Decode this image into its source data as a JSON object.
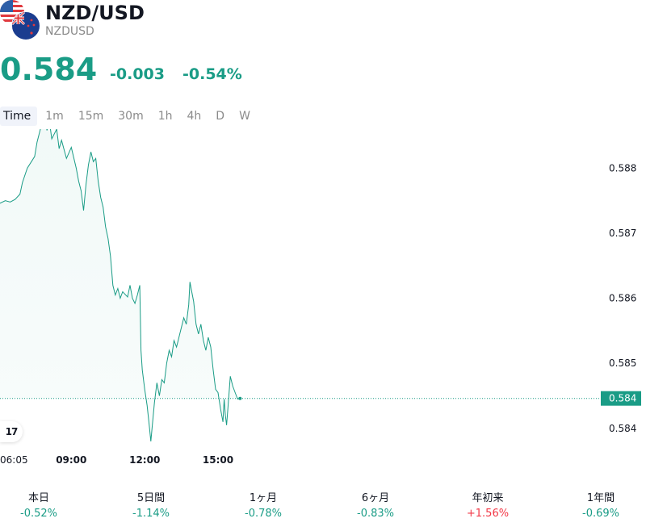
{
  "header": {
    "title": "NZD/USD",
    "symbol": "NZDUSD",
    "flags": [
      "us-flag-icon",
      "nz-flag-icon"
    ]
  },
  "quote": {
    "price": "0.584",
    "change": "-0.003",
    "change_percent": "-0.54%",
    "color": "#1a9c86"
  },
  "tabs": [
    {
      "label": "Time",
      "active": true
    },
    {
      "label": "1m",
      "active": false
    },
    {
      "label": "15m",
      "active": false
    },
    {
      "label": "30m",
      "active": false
    },
    {
      "label": "1h",
      "active": false
    },
    {
      "label": "4h",
      "active": false
    },
    {
      "label": "D",
      "active": false
    },
    {
      "label": "W",
      "active": false
    }
  ],
  "chart_data": {
    "type": "area",
    "line_color": "#1a9c86",
    "y_ticks": [
      "0.588",
      "0.587",
      "0.586",
      "0.585",
      "0.584"
    ],
    "y_tick_values": [
      0.588,
      0.587,
      0.586,
      0.585,
      0.584
    ],
    "ylim": [
      0.5837,
      0.5886
    ],
    "x_ticks": [
      {
        "label": "06:05",
        "bold": false,
        "hour": 6.083
      },
      {
        "label": "09:00",
        "bold": true,
        "hour": 9.0
      },
      {
        "label": "12:00",
        "bold": true,
        "hour": 12.0
      },
      {
        "label": "15:00",
        "bold": true,
        "hour": 15.0
      }
    ],
    "xlim_hours": [
      6.083,
      32.5
    ],
    "current_price_label": "0.584",
    "current_price_value": 0.58446,
    "series": [
      {
        "points": [
          [
            6.08,
            0.58746
          ],
          [
            6.3,
            0.5875
          ],
          [
            6.5,
            0.58748
          ],
          [
            6.7,
            0.58752
          ],
          [
            6.9,
            0.5876
          ],
          [
            7.0,
            0.58778
          ],
          [
            7.2,
            0.588
          ],
          [
            7.4,
            0.58812
          ],
          [
            7.5,
            0.58818
          ],
          [
            7.6,
            0.5884
          ],
          [
            7.7,
            0.58855
          ],
          [
            7.8,
            0.5887
          ],
          [
            7.95,
            0.5888
          ],
          [
            8.0,
            0.58858
          ],
          [
            8.1,
            0.58873
          ],
          [
            8.2,
            0.58845
          ],
          [
            8.4,
            0.5886
          ],
          [
            8.5,
            0.5883
          ],
          [
            8.6,
            0.58843
          ],
          [
            8.8,
            0.58815
          ],
          [
            9.0,
            0.58832
          ],
          [
            9.2,
            0.588
          ],
          [
            9.3,
            0.5878
          ],
          [
            9.4,
            0.58765
          ],
          [
            9.5,
            0.58735
          ],
          [
            9.6,
            0.58775
          ],
          [
            9.7,
            0.58805
          ],
          [
            9.8,
            0.58825
          ],
          [
            9.9,
            0.5881
          ],
          [
            10.0,
            0.58815
          ],
          [
            10.1,
            0.5878
          ],
          [
            10.2,
            0.58755
          ],
          [
            10.3,
            0.5874
          ],
          [
            10.4,
            0.5871
          ],
          [
            10.5,
            0.58692
          ],
          [
            10.6,
            0.58665
          ],
          [
            10.7,
            0.5862
          ],
          [
            10.8,
            0.58605
          ],
          [
            10.9,
            0.58615
          ],
          [
            11.0,
            0.586
          ],
          [
            11.1,
            0.5861
          ],
          [
            11.3,
            0.58602
          ],
          [
            11.4,
            0.5862
          ],
          [
            11.5,
            0.586
          ],
          [
            11.6,
            0.58592
          ],
          [
            11.7,
            0.58605
          ],
          [
            11.8,
            0.5862
          ],
          [
            11.85,
            0.5852
          ],
          [
            11.9,
            0.5849
          ],
          [
            12.0,
            0.5846
          ],
          [
            12.1,
            0.58435
          ],
          [
            12.2,
            0.584
          ],
          [
            12.25,
            0.5838
          ],
          [
            12.3,
            0.584
          ],
          [
            12.4,
            0.5844
          ],
          [
            12.5,
            0.5847
          ],
          [
            12.6,
            0.5845
          ],
          [
            12.7,
            0.58475
          ],
          [
            12.8,
            0.5847
          ],
          [
            12.9,
            0.585
          ],
          [
            13.0,
            0.5852
          ],
          [
            13.1,
            0.5851
          ],
          [
            13.2,
            0.58535
          ],
          [
            13.3,
            0.58525
          ],
          [
            13.4,
            0.5854
          ],
          [
            13.5,
            0.58555
          ],
          [
            13.6,
            0.5857
          ],
          [
            13.7,
            0.5856
          ],
          [
            13.8,
            0.5859
          ],
          [
            13.85,
            0.58625
          ],
          [
            13.9,
            0.58615
          ],
          [
            14.0,
            0.58595
          ],
          [
            14.1,
            0.5856
          ],
          [
            14.2,
            0.58545
          ],
          [
            14.3,
            0.5856
          ],
          [
            14.4,
            0.58535
          ],
          [
            14.5,
            0.5852
          ],
          [
            14.6,
            0.5854
          ],
          [
            14.7,
            0.58525
          ],
          [
            14.8,
            0.5849
          ],
          [
            14.9,
            0.5846
          ],
          [
            15.0,
            0.58455
          ],
          [
            15.1,
            0.5843
          ],
          [
            15.2,
            0.5841
          ],
          [
            15.25,
            0.58445
          ],
          [
            15.3,
            0.5842
          ],
          [
            15.35,
            0.58405
          ],
          [
            15.4,
            0.5843
          ],
          [
            15.5,
            0.5848
          ],
          [
            15.6,
            0.58465
          ],
          [
            15.7,
            0.58455
          ],
          [
            15.8,
            0.58445
          ],
          [
            15.9,
            0.58446
          ]
        ]
      }
    ]
  },
  "tv_logo": "17",
  "periods": [
    {
      "label": "本日",
      "value": "-0.52%",
      "direction": "neg"
    },
    {
      "label": "5日間",
      "value": "-1.14%",
      "direction": "neg"
    },
    {
      "label": "1ヶ月",
      "value": "-0.78%",
      "direction": "neg"
    },
    {
      "label": "6ヶ月",
      "value": "-0.83%",
      "direction": "neg"
    },
    {
      "label": "年初来",
      "value": "+1.56%",
      "direction": "pos"
    },
    {
      "label": "1年間",
      "value": "-0.69%",
      "direction": "neg"
    }
  ]
}
